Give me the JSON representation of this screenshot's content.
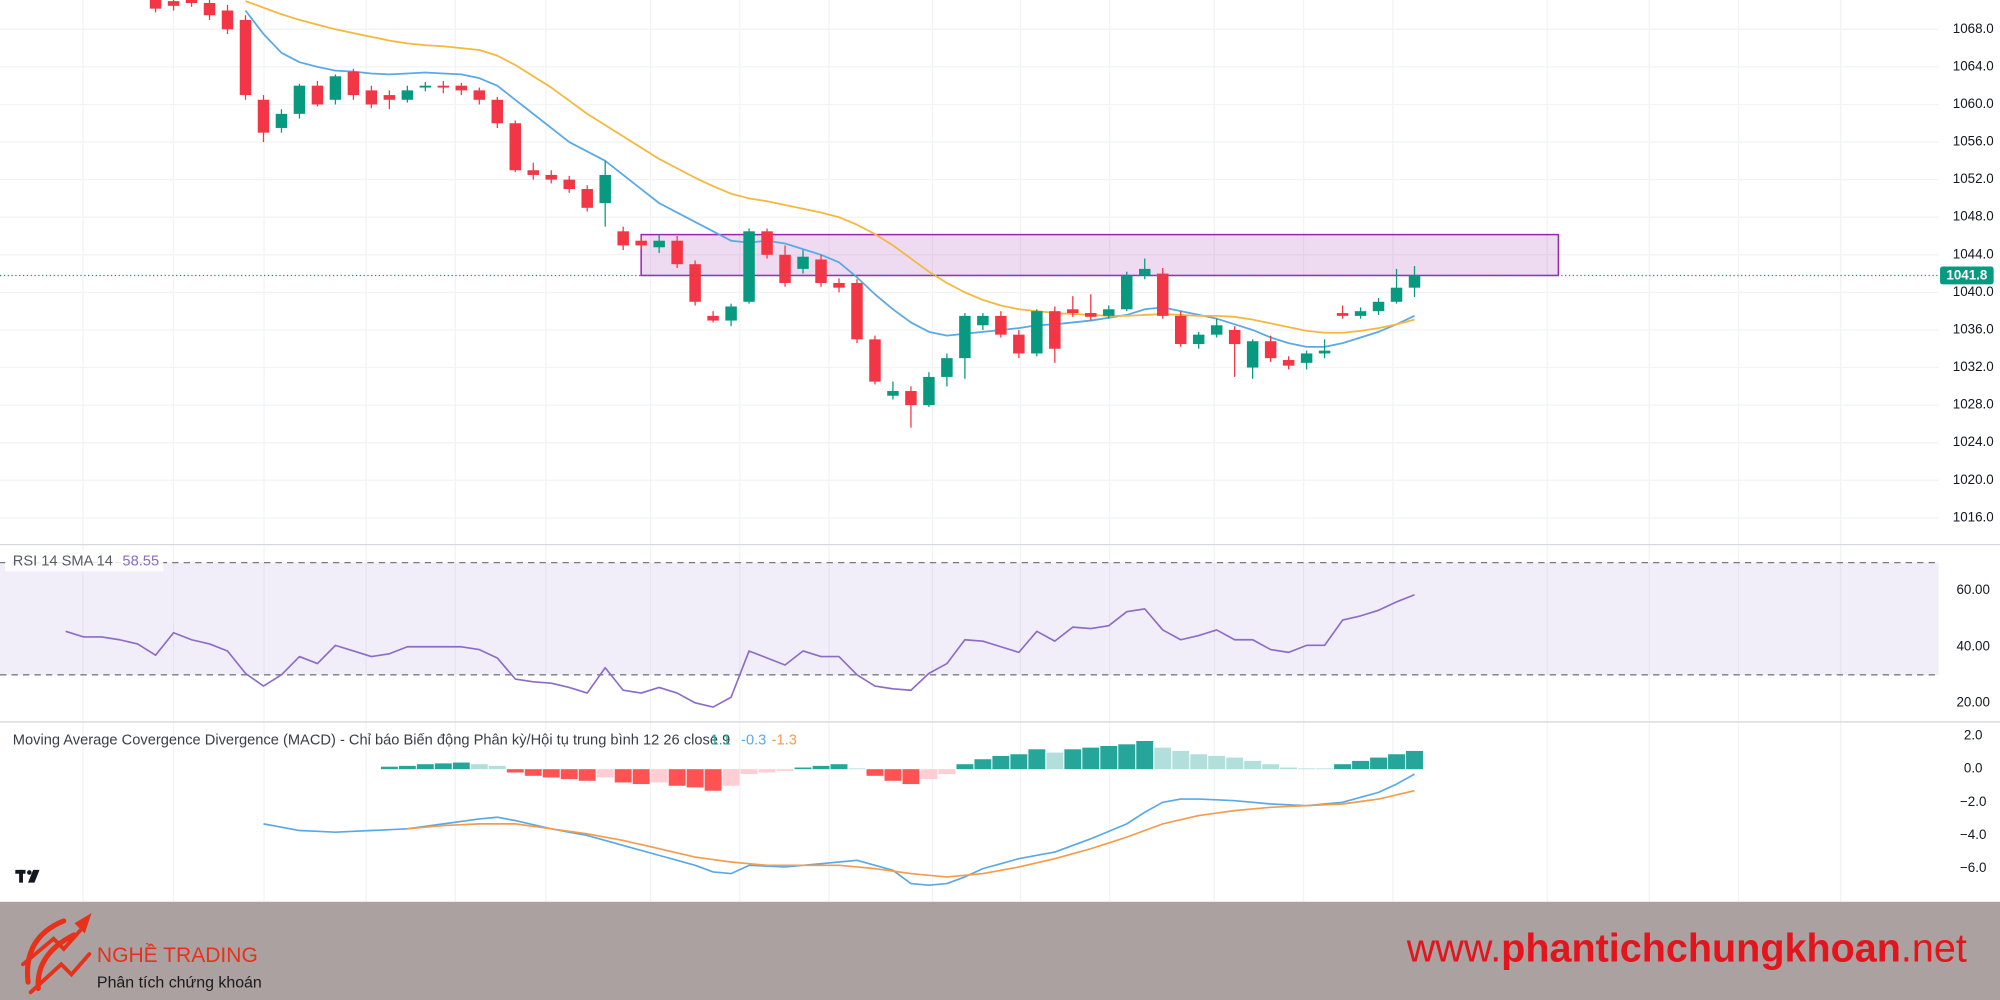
{
  "chart_data": [
    {
      "type": "candlestick",
      "xlim": [
        -3.65,
        104.15
      ],
      "ylim": [
        1013.15,
        1071.12
      ],
      "yticks": [
        {
          "value": 1016,
          "label": "1016.0"
        },
        {
          "value": 1020,
          "label": "1020.0"
        },
        {
          "value": 1024,
          "label": "1024.0"
        },
        {
          "value": 1028,
          "label": "1028.0"
        },
        {
          "value": 1032,
          "label": "1032.0"
        },
        {
          "value": 1036,
          "label": "1036.0"
        },
        {
          "value": 1040,
          "label": "1040.0"
        },
        {
          "value": 1044,
          "label": "1044.0"
        },
        {
          "value": 1048,
          "label": "1048.0"
        },
        {
          "value": 1052,
          "label": "1052.0"
        },
        {
          "value": 1056,
          "label": "1056.0"
        },
        {
          "value": 1060,
          "label": "1060.0"
        },
        {
          "value": 1064,
          "label": "1064.0"
        },
        {
          "value": 1068,
          "label": "1068.0"
        }
      ],
      "grid": true,
      "up_color": "#089981",
      "down_color": "#f23645",
      "open": [
        null,
        null,
        null,
        null,
        null,
        1071.5,
        1071,
        1071.2,
        1070.8,
        1070,
        1069,
        1060.5,
        1057.5,
        1059,
        1062,
        1060.5,
        1063.5,
        1061.5,
        1061,
        1060.5,
        1061.8,
        1062,
        1062,
        1061.5,
        1060.5,
        1058,
        1053,
        1052.5,
        1052,
        1051,
        1049.5,
        1046.5,
        1045.5,
        1044.8,
        1045.5,
        1043,
        1037.5,
        1037,
        1039,
        1046.5,
        1044,
        1042.5,
        1043.5,
        1041,
        1041,
        1035,
        1029,
        1029.5,
        1028,
        1031,
        1033,
        1036.5,
        1037.5,
        1035.5,
        1033.5,
        1038,
        1038.2,
        1037.8,
        1037.5,
        1038.2,
        1041.8,
        1042,
        1037.5,
        1034.5,
        1035.5,
        1036,
        1032,
        1034.8,
        1032.8,
        1032.5,
        1033.5,
        1037.8,
        1037.5,
        1038,
        1039,
        1040.5
      ],
      "high": [
        null,
        null,
        null,
        null,
        null,
        1072,
        1071.8,
        1071.8,
        1071.5,
        1070.6,
        1069.5,
        1061,
        1059.5,
        1062.2,
        1062.5,
        1063.2,
        1063.8,
        1062,
        1061.5,
        1062,
        1062.4,
        1062.5,
        1062.3,
        1061.8,
        1060.8,
        1058.3,
        1053.8,
        1053,
        1052.4,
        1051.4,
        1054,
        1047,
        1046,
        1046.2,
        1046,
        1043.4,
        1038,
        1038.8,
        1046.8,
        1046.8,
        1045,
        1044.5,
        1044,
        1041.5,
        1041.4,
        1035.4,
        1030.5,
        1030,
        1031.5,
        1033.5,
        1037.8,
        1037.8,
        1038,
        1036,
        1038.2,
        1038.5,
        1039.6,
        1039.8,
        1038.6,
        1042.2,
        1043.6,
        1042.6,
        1038,
        1035.8,
        1037.2,
        1036.4,
        1035,
        1035.4,
        1033.2,
        1033.8,
        1035,
        1038.6,
        1038.4,
        1039.4,
        1042.5,
        1042.8
      ],
      "low": [
        null,
        null,
        null,
        null,
        null,
        1069.8,
        1070,
        1070.4,
        1069,
        1067.5,
        1060.5,
        1056,
        1057,
        1058.5,
        1059.8,
        1060,
        1060.5,
        1059.6,
        1059.5,
        1060.2,
        1061.4,
        1061.2,
        1061,
        1060,
        1057.5,
        1052.8,
        1052,
        1051.6,
        1050.6,
        1048.6,
        1047,
        1044.5,
        1044.6,
        1044.2,
        1042.6,
        1038.6,
        1036.8,
        1036.4,
        1038.8,
        1043.6,
        1040.6,
        1042,
        1040.6,
        1040,
        1034.6,
        1030.2,
        1028.6,
        1025.6,
        1027.8,
        1030,
        1030.8,
        1036,
        1035.2,
        1033,
        1033.2,
        1032.5,
        1037.4,
        1037,
        1037.2,
        1038,
        1041.4,
        1037.2,
        1034.2,
        1034,
        1035.2,
        1031,
        1030.8,
        1032.6,
        1031.8,
        1031.8,
        1033,
        1037.2,
        1037.2,
        1037.6,
        1038.8,
        1039.5
      ],
      "close": [
        null,
        null,
        null,
        null,
        null,
        1070.2,
        1070.5,
        1070.8,
        1069.5,
        1068,
        1061,
        1057,
        1059,
        1062,
        1060,
        1063,
        1061,
        1060,
        1060.5,
        1061.5,
        1062,
        1061.8,
        1061.5,
        1060.5,
        1058,
        1053,
        1052.5,
        1052,
        1051,
        1049,
        1052.5,
        1045,
        1045,
        1045.5,
        1043,
        1039,
        1037,
        1038.5,
        1046.5,
        1044,
        1041,
        1043.8,
        1041,
        1040.5,
        1035,
        1030.5,
        1029.5,
        1028,
        1031,
        1033,
        1037.5,
        1037.5,
        1035.5,
        1033.5,
        1038,
        1034,
        1037.8,
        1037.4,
        1038.2,
        1041.8,
        1042.5,
        1037.5,
        1034.5,
        1035.5,
        1036.5,
        1034.5,
        1034.8,
        1033,
        1032.2,
        1033.5,
        1033.8,
        1037.5,
        1038,
        1039,
        1040.5,
        1041.8
      ],
      "series": [
        {
          "color": "#5aa9e6",
          "values": [
            null,
            null,
            null,
            null,
            null,
            null,
            null,
            null,
            null,
            null,
            1070,
            1067.5,
            1065.5,
            1064.5,
            1064,
            1063.6,
            1063.5,
            1063.3,
            1063.2,
            1063.3,
            1063.4,
            1063.3,
            1063.2,
            1062.8,
            1062,
            1060.5,
            1059,
            1057.5,
            1056,
            1055,
            1054,
            1052.5,
            1051,
            1049.5,
            1048.5,
            1047.5,
            1046.5,
            1045.5,
            1045.3,
            1045.5,
            1045.2,
            1044.6,
            1044,
            1043.2,
            1041.6,
            1039.8,
            1038.2,
            1036.8,
            1035.8,
            1035.4,
            1035.6,
            1035.8,
            1036,
            1036.2,
            1036.5,
            1036.6,
            1036.8,
            1037,
            1037.3,
            1037.6,
            1038.2,
            1038.4,
            1038,
            1037.6,
            1037.2,
            1036.6,
            1036,
            1035.2,
            1034.6,
            1034.2,
            1034.2,
            1034.6,
            1035.2,
            1035.8,
            1036.6,
            1037.5
          ]
        },
        {
          "color": "#f5b83d",
          "values": [
            null,
            null,
            null,
            null,
            null,
            null,
            null,
            null,
            null,
            null,
            1071,
            1070.3,
            1069.6,
            1069,
            1068.5,
            1068,
            1067.6,
            1067.2,
            1066.8,
            1066.5,
            1066.3,
            1066.2,
            1066,
            1065.8,
            1065.2,
            1064.2,
            1063,
            1061.8,
            1060.4,
            1059,
            1057.8,
            1056.6,
            1055.4,
            1054.2,
            1053.2,
            1052.2,
            1051.3,
            1050.5,
            1050,
            1049.7,
            1049.3,
            1048.9,
            1048.5,
            1048,
            1047.2,
            1046.2,
            1045,
            1043.6,
            1042.2,
            1041,
            1040,
            1039.2,
            1038.6,
            1038.2,
            1038,
            1037.8,
            1037.7,
            1037.6,
            1037.5,
            1037.5,
            1037.6,
            1037.7,
            1037.6,
            1037.5,
            1037.5,
            1037.4,
            1037.1,
            1036.7,
            1036.3,
            1035.9,
            1035.7,
            1035.7,
            1035.9,
            1036.2,
            1036.6,
            1037.1
          ]
        }
      ],
      "zone": {
        "x": [
          32,
          83
        ],
        "y": [
          1041.8,
          1046.15
        ],
        "color": "#9c27b0"
      }
    },
    {
      "type": "line",
      "title": "RSI 14 SMA 14",
      "xlim": [
        -3.65,
        104.15
      ],
      "ylim": [
        13.2,
        76.4
      ],
      "yticks": [
        {
          "value": 20,
          "label": "20.00"
        },
        {
          "value": 40,
          "label": "40.00"
        },
        {
          "value": 60,
          "label": "60.00"
        }
      ],
      "bands": [
        70,
        30
      ],
      "band_color": "#7e57c2",
      "series": [
        {
          "color": "#8c6cc6",
          "values": [
            45.5,
            43.5,
            43.5,
            42.5,
            41,
            37,
            45,
            42.5,
            41,
            38.5,
            30.5,
            26,
            30,
            36.5,
            34,
            40.5,
            38.5,
            36.5,
            37.5,
            40,
            40,
            40,
            40,
            39,
            36,
            28.5,
            27.5,
            27,
            25.5,
            23.5,
            32.5,
            24.5,
            23.5,
            25.5,
            23.5,
            20,
            18.5,
            22,
            38.5,
            36,
            33.5,
            38.5,
            36.5,
            36.5,
            30,
            26,
            25,
            24.5,
            30.5,
            34,
            42.5,
            42,
            40,
            38,
            45.5,
            42,
            47,
            46.5,
            47.5,
            52.5,
            53.5,
            46,
            42.5,
            44,
            46,
            42.5,
            42.5,
            39,
            38,
            40.5,
            40.5,
            49.5,
            51,
            53,
            56,
            58.55
          ]
        }
      ]
    },
    {
      "type": "macd",
      "title": "Moving Average Covergence Divergence (MACD) - Chỉ báo Biến động Phân kỳ/Hội tụ trung bình 12 26 close 9",
      "xlim": [
        -3.65,
        104.15
      ],
      "ylim": [
        -8,
        2.85
      ],
      "yticks": [
        {
          "value": 2,
          "label": "2.0"
        },
        {
          "value": 0,
          "label": "0.0"
        },
        {
          "value": -2,
          "label": "−2.0"
        },
        {
          "value": -4,
          "label": "−4.0"
        },
        {
          "value": -6,
          "label": "−6.0"
        }
      ],
      "histogram": {
        "colors": [
          "#26a69a",
          "#b2dfdb",
          "#ff5252",
          "#ffcdd2"
        ],
        "values": [
          null,
          null,
          null,
          null,
          null,
          null,
          null,
          null,
          null,
          null,
          null,
          null,
          null,
          null,
          null,
          null,
          null,
          null,
          0.15,
          0.2,
          0.3,
          0.35,
          0.4,
          0.3,
          0.2,
          -0.2,
          -0.4,
          -0.5,
          -0.6,
          -0.7,
          -0.5,
          -0.8,
          -0.9,
          -0.8,
          -1.0,
          -1.1,
          -1.3,
          -1.0,
          -0.3,
          -0.2,
          -0.1,
          0.1,
          0.2,
          0.3,
          0.05,
          -0.4,
          -0.7,
          -0.9,
          -0.6,
          -0.3,
          0.3,
          0.6,
          0.8,
          0.9,
          1.2,
          1.0,
          1.2,
          1.3,
          1.4,
          1.5,
          1.7,
          1.3,
          1.1,
          0.9,
          0.8,
          0.7,
          0.5,
          0.3,
          0.1,
          0.05,
          0.05,
          0.3,
          0.5,
          0.7,
          0.9,
          1.1
        ]
      },
      "series": [
        {
          "color": "#5aa9e6",
          "values": [
            null,
            null,
            null,
            null,
            null,
            null,
            null,
            null,
            null,
            null,
            null,
            -3.3,
            -3.5,
            -3.7,
            -3.75,
            -3.8,
            -3.75,
            -3.7,
            -3.65,
            -3.6,
            -3.45,
            -3.3,
            -3.15,
            -3.0,
            -2.9,
            -3.1,
            -3.35,
            -3.6,
            -3.8,
            -4.0,
            -4.3,
            -4.6,
            -4.9,
            -5.2,
            -5.5,
            -5.8,
            -6.2,
            -6.3,
            -5.8,
            -5.85,
            -5.9,
            -5.8,
            -5.7,
            -5.6,
            -5.5,
            -5.8,
            -6.1,
            -6.9,
            -7.0,
            -6.9,
            -6.5,
            -6.0,
            -5.7,
            -5.4,
            -5.2,
            -5.0,
            -4.6,
            -4.2,
            -3.75,
            -3.3,
            -2.6,
            -2.0,
            -1.8,
            -1.8,
            -1.85,
            -1.9,
            -2.0,
            -2.1,
            -2.15,
            -2.2,
            -2.1,
            -2.0,
            -1.7,
            -1.4,
            -0.9,
            -0.3
          ]
        },
        {
          "color": "#f59b4c",
          "values": [
            null,
            null,
            null,
            null,
            null,
            null,
            null,
            null,
            null,
            null,
            null,
            null,
            null,
            null,
            null,
            null,
            null,
            null,
            null,
            -3.6,
            -3.5,
            -3.4,
            -3.35,
            -3.3,
            -3.3,
            -3.3,
            -3.45,
            -3.6,
            -3.75,
            -3.9,
            -4.1,
            -4.3,
            -4.55,
            -4.8,
            -5.05,
            -5.3,
            -5.45,
            -5.6,
            -5.7,
            -5.8,
            -5.8,
            -5.8,
            -5.8,
            -5.8,
            -5.9,
            -6.0,
            -6.15,
            -6.3,
            -6.4,
            -6.5,
            -6.4,
            -6.3,
            -6.1,
            -5.9,
            -5.65,
            -5.4,
            -5.1,
            -4.8,
            -4.45,
            -4.1,
            -3.7,
            -3.3,
            -3.05,
            -2.8,
            -2.65,
            -2.5,
            -2.4,
            -2.3,
            -2.25,
            -2.2,
            -2.15,
            -2.1,
            -1.95,
            -1.8,
            -1.55,
            -1.3
          ]
        }
      ]
    }
  ],
  "footer": {
    "brand": "NGHỀ TRADING",
    "tagline": "Phân tích chứng khoán",
    "url": [
      "www.",
      "phantichchungkhoan",
      ".net"
    ]
  }
}
